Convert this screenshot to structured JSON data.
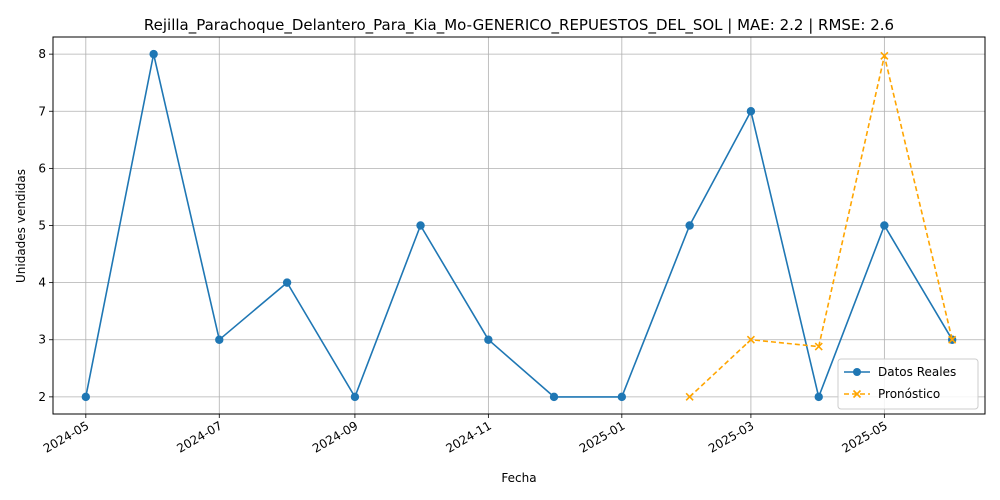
{
  "chart_data": {
    "type": "line",
    "title": "Rejilla_Parachoque_Delantero_Para_Kia_Mo-GENERICO_REPUESTOS_DEL_SOL | MAE: 2.2 | RMSE: 2.6",
    "xlabel": "Fecha",
    "ylabel": "Unidades vendidas",
    "x_ticks": [
      "2024-05",
      "2024-07",
      "2024-09",
      "2024-11",
      "2025-01",
      "2025-03",
      "2025-05"
    ],
    "y_ticks": [
      2,
      3,
      4,
      5,
      6,
      7,
      8
    ],
    "xlim": [
      "2024-04-16",
      "2025-06-16"
    ],
    "ylim": [
      1.7,
      8.3
    ],
    "grid": true,
    "legend_position": "lower right",
    "series": [
      {
        "name": "Datos Reales",
        "color": "#1f77b4",
        "marker": "circle",
        "linestyle": "solid",
        "x": [
          "2024-05-01",
          "2024-06-01",
          "2024-07-01",
          "2024-08-01",
          "2024-09-01",
          "2024-10-01",
          "2024-11-01",
          "2024-12-01",
          "2025-01-01",
          "2025-02-01",
          "2025-03-01",
          "2025-04-01",
          "2025-05-01",
          "2025-06-01"
        ],
        "values": [
          2,
          8,
          3,
          4,
          2,
          5,
          3,
          2,
          2,
          5,
          7,
          2,
          5,
          3
        ]
      },
      {
        "name": "Pronóstico",
        "color": "#ffa500",
        "marker": "x",
        "linestyle": "dashed",
        "x": [
          "2025-02-01",
          "2025-03-01",
          "2025-04-01",
          "2025-05-01",
          "2025-06-01"
        ],
        "values": [
          2,
          3,
          2.88,
          7.97,
          3
        ]
      }
    ]
  }
}
